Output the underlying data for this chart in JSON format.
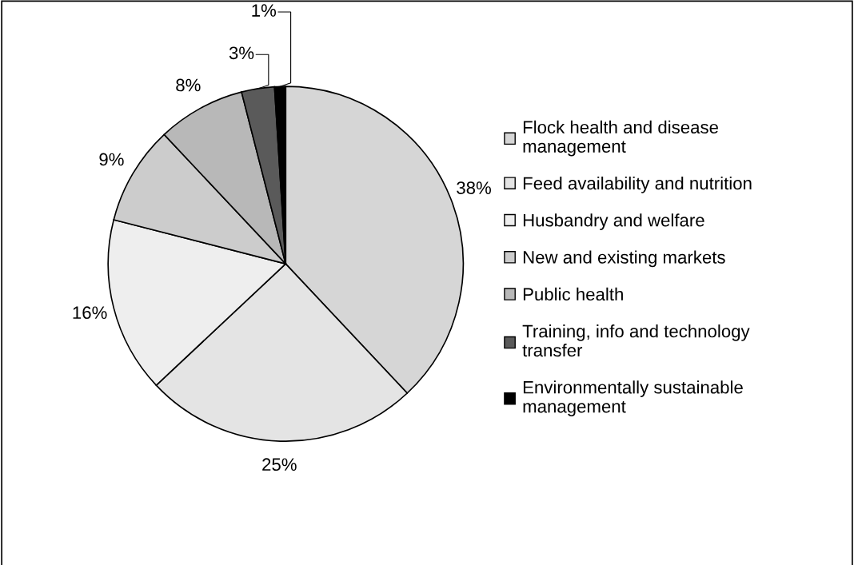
{
  "chart_data": {
    "type": "pie",
    "categories": [
      "Flock health and disease management",
      "Feed availability and nutrition",
      "Husbandry and welfare",
      "New and existing markets",
      "Public health",
      "Training, info and technology transfer",
      "Environmentally sustainable management"
    ],
    "values": [
      38,
      25,
      16,
      9,
      8,
      3,
      1
    ],
    "value_labels": [
      "38%",
      "25%",
      "16%",
      "9%",
      "8%",
      "3%",
      "1%"
    ],
    "colors": [
      "#d6d6d6",
      "#e4e4e4",
      "#eeeeee",
      "#cccccc",
      "#b8b8b8",
      "#5a5a5a",
      "#000000"
    ],
    "legend": "right"
  }
}
